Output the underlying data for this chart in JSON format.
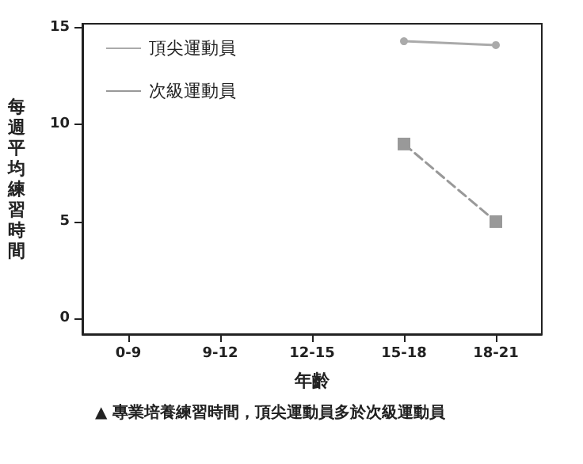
{
  "chart_data": {
    "type": "line",
    "xlabel": "年齡",
    "ylabel": "每週平均練習時間",
    "categories": [
      "0-9",
      "9-12",
      "12-15",
      "15-18",
      "18-21"
    ],
    "series": [
      {
        "name": "頂尖運動員",
        "color": "#aaaaaa",
        "values": [
          null,
          null,
          null,
          14.3,
          14.1
        ],
        "marker": "circle",
        "line_style": "solid"
      },
      {
        "name": "次級運動員",
        "color": "#999999",
        "values": [
          null,
          null,
          null,
          9,
          5
        ],
        "marker": "square",
        "line_style": "dashed"
      }
    ],
    "ylim": [
      -0.8,
      15.2
    ],
    "yticks": [
      0,
      5,
      10,
      15
    ],
    "grid": false,
    "legend": "top left",
    "annotations": [
      "▲ 專業培養練習時間，頂尖運動員多於次級運動員"
    ]
  }
}
